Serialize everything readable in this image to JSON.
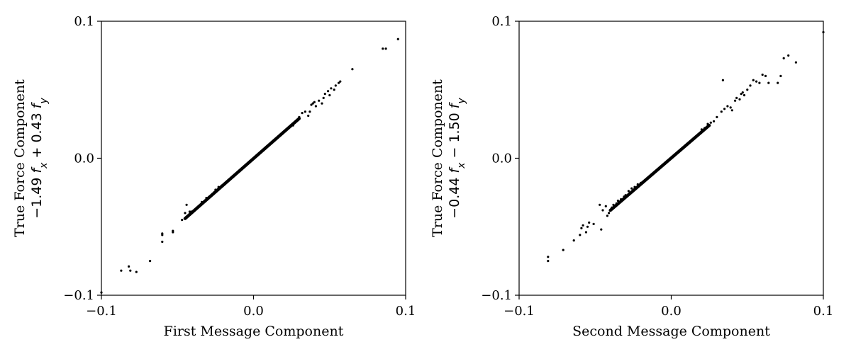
{
  "chart_data": [
    {
      "type": "scatter",
      "xlabel": "First Message Component",
      "ylabel_lines": [
        "True Force Component",
        "−1.49 f_x + 0.43 f_y"
      ],
      "xlim": [
        -0.1,
        0.1
      ],
      "ylim": [
        -0.1,
        0.1
      ],
      "xticks": [
        -0.1,
        0.0,
        0.1
      ],
      "yticks": [
        -0.1,
        0.0,
        0.1
      ],
      "xtick_labels": [
        "−0.1",
        "0.0",
        "0.1"
      ],
      "ytick_labels": [
        "−0.1",
        "0.0",
        "0.1"
      ],
      "grid": false,
      "marker_color": "#000000",
      "line_fit": {
        "x": [
          -0.045,
          0.03
        ],
        "y": [
          -0.044,
          0.029
        ]
      },
      "points": [
        [
          -0.1,
          -0.098
        ],
        [
          -0.087,
          -0.082
        ],
        [
          -0.082,
          -0.079
        ],
        [
          -0.081,
          -0.082
        ],
        [
          -0.077,
          -0.083
        ],
        [
          -0.068,
          -0.075
        ],
        [
          -0.06,
          -0.055
        ],
        [
          -0.06,
          -0.061
        ],
        [
          -0.06,
          -0.056
        ],
        [
          -0.053,
          -0.053
        ],
        [
          -0.053,
          -0.054
        ],
        [
          -0.047,
          -0.045
        ],
        [
          -0.045,
          -0.04
        ],
        [
          -0.044,
          -0.034
        ],
        [
          -0.042,
          -0.039
        ],
        [
          -0.041,
          -0.039
        ],
        [
          -0.039,
          -0.038
        ],
        [
          -0.037,
          -0.036
        ],
        [
          -0.034,
          -0.032
        ],
        [
          -0.031,
          -0.029
        ],
        [
          -0.029,
          -0.028
        ],
        [
          -0.027,
          -0.026
        ],
        [
          -0.026,
          -0.025
        ],
        [
          -0.025,
          -0.023
        ],
        [
          -0.023,
          -0.021
        ],
        [
          -0.021,
          -0.02
        ],
        [
          0.026,
          0.024
        ],
        [
          0.028,
          0.027
        ],
        [
          0.03,
          0.03
        ],
        [
          0.032,
          0.033
        ],
        [
          0.034,
          0.034
        ],
        [
          0.036,
          0.031
        ],
        [
          0.037,
          0.034
        ],
        [
          0.038,
          0.039
        ],
        [
          0.039,
          0.04
        ],
        [
          0.04,
          0.041
        ],
        [
          0.041,
          0.038
        ],
        [
          0.043,
          0.042
        ],
        [
          0.045,
          0.04
        ],
        [
          0.046,
          0.044
        ],
        [
          0.047,
          0.047
        ],
        [
          0.049,
          0.049
        ],
        [
          0.05,
          0.046
        ],
        [
          0.051,
          0.051
        ],
        [
          0.053,
          0.05
        ],
        [
          0.054,
          0.053
        ],
        [
          0.056,
          0.055
        ],
        [
          0.057,
          0.056
        ],
        [
          0.065,
          0.065
        ],
        [
          0.085,
          0.08
        ],
        [
          0.087,
          0.08
        ],
        [
          0.095,
          0.087
        ]
      ]
    },
    {
      "type": "scatter",
      "xlabel": "Second Message Component",
      "ylabel_lines": [
        "True Force Component",
        "−0.44 f_x − 1.50 f_y"
      ],
      "xlim": [
        -0.1,
        0.1
      ],
      "ylim": [
        -0.1,
        0.1
      ],
      "xticks": [
        -0.1,
        0.0,
        0.1
      ],
      "yticks": [
        -0.1,
        0.0,
        0.1
      ],
      "xtick_labels": [
        "−0.1",
        "0.0",
        "0.1"
      ],
      "ytick_labels": [
        "−0.1",
        "0.0",
        "0.1"
      ],
      "grid": false,
      "marker_color": "#000000",
      "line_fit": {
        "x": [
          -0.04,
          0.025
        ],
        "y": [
          -0.038,
          0.024
        ]
      },
      "points": [
        [
          -0.081,
          -0.075
        ],
        [
          -0.081,
          -0.072
        ],
        [
          -0.071,
          -0.067
        ],
        [
          -0.064,
          -0.06
        ],
        [
          -0.06,
          -0.056
        ],
        [
          -0.059,
          -0.051
        ],
        [
          -0.058,
          -0.049
        ],
        [
          -0.056,
          -0.054
        ],
        [
          -0.055,
          -0.05
        ],
        [
          -0.054,
          -0.047
        ],
        [
          -0.051,
          -0.048
        ],
        [
          -0.047,
          -0.034
        ],
        [
          -0.046,
          -0.052
        ],
        [
          -0.045,
          -0.038
        ],
        [
          -0.043,
          -0.035
        ],
        [
          -0.042,
          -0.042
        ],
        [
          -0.041,
          -0.04
        ],
        [
          -0.039,
          -0.036
        ],
        [
          -0.038,
          -0.034
        ],
        [
          -0.036,
          -0.033
        ],
        [
          -0.035,
          -0.031
        ],
        [
          -0.033,
          -0.03
        ],
        [
          -0.031,
          -0.028
        ],
        [
          -0.03,
          -0.027
        ],
        [
          -0.028,
          -0.024
        ],
        [
          -0.026,
          -0.022
        ],
        [
          -0.024,
          -0.021
        ],
        [
          -0.022,
          -0.019
        ],
        [
          -0.02,
          -0.018
        ],
        [
          0.02,
          0.021
        ],
        [
          0.022,
          0.022
        ],
        [
          0.024,
          0.025
        ],
        [
          0.026,
          0.026
        ],
        [
          0.028,
          0.027
        ],
        [
          0.03,
          0.03
        ],
        [
          0.033,
          0.034
        ],
        [
          0.034,
          0.057
        ],
        [
          0.035,
          0.036
        ],
        [
          0.037,
          0.038
        ],
        [
          0.039,
          0.037
        ],
        [
          0.04,
          0.035
        ],
        [
          0.042,
          0.042
        ],
        [
          0.043,
          0.044
        ],
        [
          0.045,
          0.043
        ],
        [
          0.046,
          0.047
        ],
        [
          0.047,
          0.048
        ],
        [
          0.048,
          0.046
        ],
        [
          0.05,
          0.05
        ],
        [
          0.052,
          0.053
        ],
        [
          0.054,
          0.057
        ],
        [
          0.056,
          0.056
        ],
        [
          0.058,
          0.055
        ],
        [
          0.06,
          0.061
        ],
        [
          0.062,
          0.06
        ],
        [
          0.064,
          0.055
        ],
        [
          0.07,
          0.055
        ],
        [
          0.072,
          0.06
        ],
        [
          0.074,
          0.073
        ],
        [
          0.077,
          0.075
        ],
        [
          0.082,
          0.07
        ],
        [
          0.1,
          0.092
        ]
      ]
    }
  ]
}
